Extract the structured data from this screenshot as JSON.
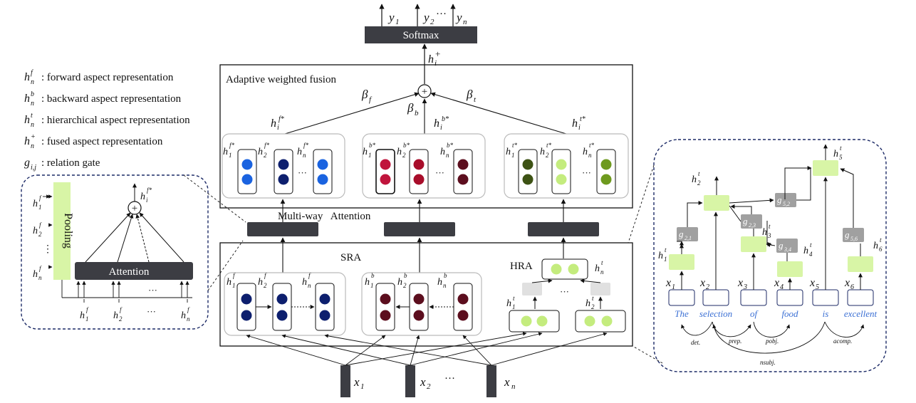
{
  "output": {
    "softmax_label": "Softmax",
    "y_labels": [
      "y",
      "y",
      "y"
    ],
    "y_subs": [
      "1",
      "2",
      "n"
    ],
    "dots": "···"
  },
  "fusion": {
    "title": "Adaptive weighted fusion",
    "h_plus": "h",
    "h_plus_sup": "+",
    "h_plus_sub": "i",
    "beta_f": "β",
    "beta_f_sub": "f",
    "beta_b": "β",
    "beta_b_sub": "b",
    "beta_t": "β",
    "beta_t_sub": "t",
    "hf_star": "h",
    "hb_star": "h",
    "ht_star": "h"
  },
  "legend": [
    {
      "sym": "h",
      "sup": "f",
      "sub": "n",
      "text": ": forward aspect representation"
    },
    {
      "sym": "h",
      "sup": "b",
      "sub": "n",
      "text": ": backward aspect representation"
    },
    {
      "sym": "h",
      "sup": "t",
      "sub": "n",
      "text": ": hierarchical aspect representation"
    },
    {
      "sym": "h",
      "sup": "+",
      "sub": "n",
      "text": ": fused aspect representation"
    },
    {
      "sym": "g",
      "sup": "",
      "sub": "i,j",
      "text": ": relation gate"
    }
  ],
  "attention_panel": {
    "pooling": "Pooling",
    "attention": "Attention",
    "dots": "···",
    "vdots": "⋮"
  },
  "multiway_label": "Multi-way   Attention",
  "sra_label": "SRA",
  "hra_label": "HRA",
  "inputs": {
    "x_labels": [
      "x",
      "x",
      "x"
    ],
    "x_subs": [
      "1",
      "2",
      "n"
    ],
    "dots": "···"
  },
  "tree": {
    "words": [
      "The",
      "selection",
      "of",
      "food",
      "is",
      "excellent"
    ],
    "x_subs": [
      "1",
      "2",
      "3",
      "4",
      "5",
      "6"
    ],
    "gates": [
      "g",
      "g",
      "g",
      "g",
      "g"
    ],
    "gate_subs": [
      "2,1",
      "2,3",
      "3,4",
      "5,2",
      "5,6"
    ],
    "dep_labels": [
      "det.",
      "prep.",
      "pobj.",
      "acomp.",
      "nsubj."
    ]
  },
  "colors": {
    "forward_dot": "#1a63e0",
    "forward_dot_dark": "#0d1f6e",
    "backward_dot": "#c0143c",
    "backward_dot_dark": "#5c0e1e",
    "tree_dot_dark": "#3d5214",
    "tree_dot_light": "#c4ec7e",
    "tree_dot_mid": "#6e9a1e",
    "bar_dark": "#3c3d43",
    "node_green": "#d8f5a6",
    "gate_gray": "#a0a0a0",
    "dashed_blue": "#1c2a66"
  }
}
